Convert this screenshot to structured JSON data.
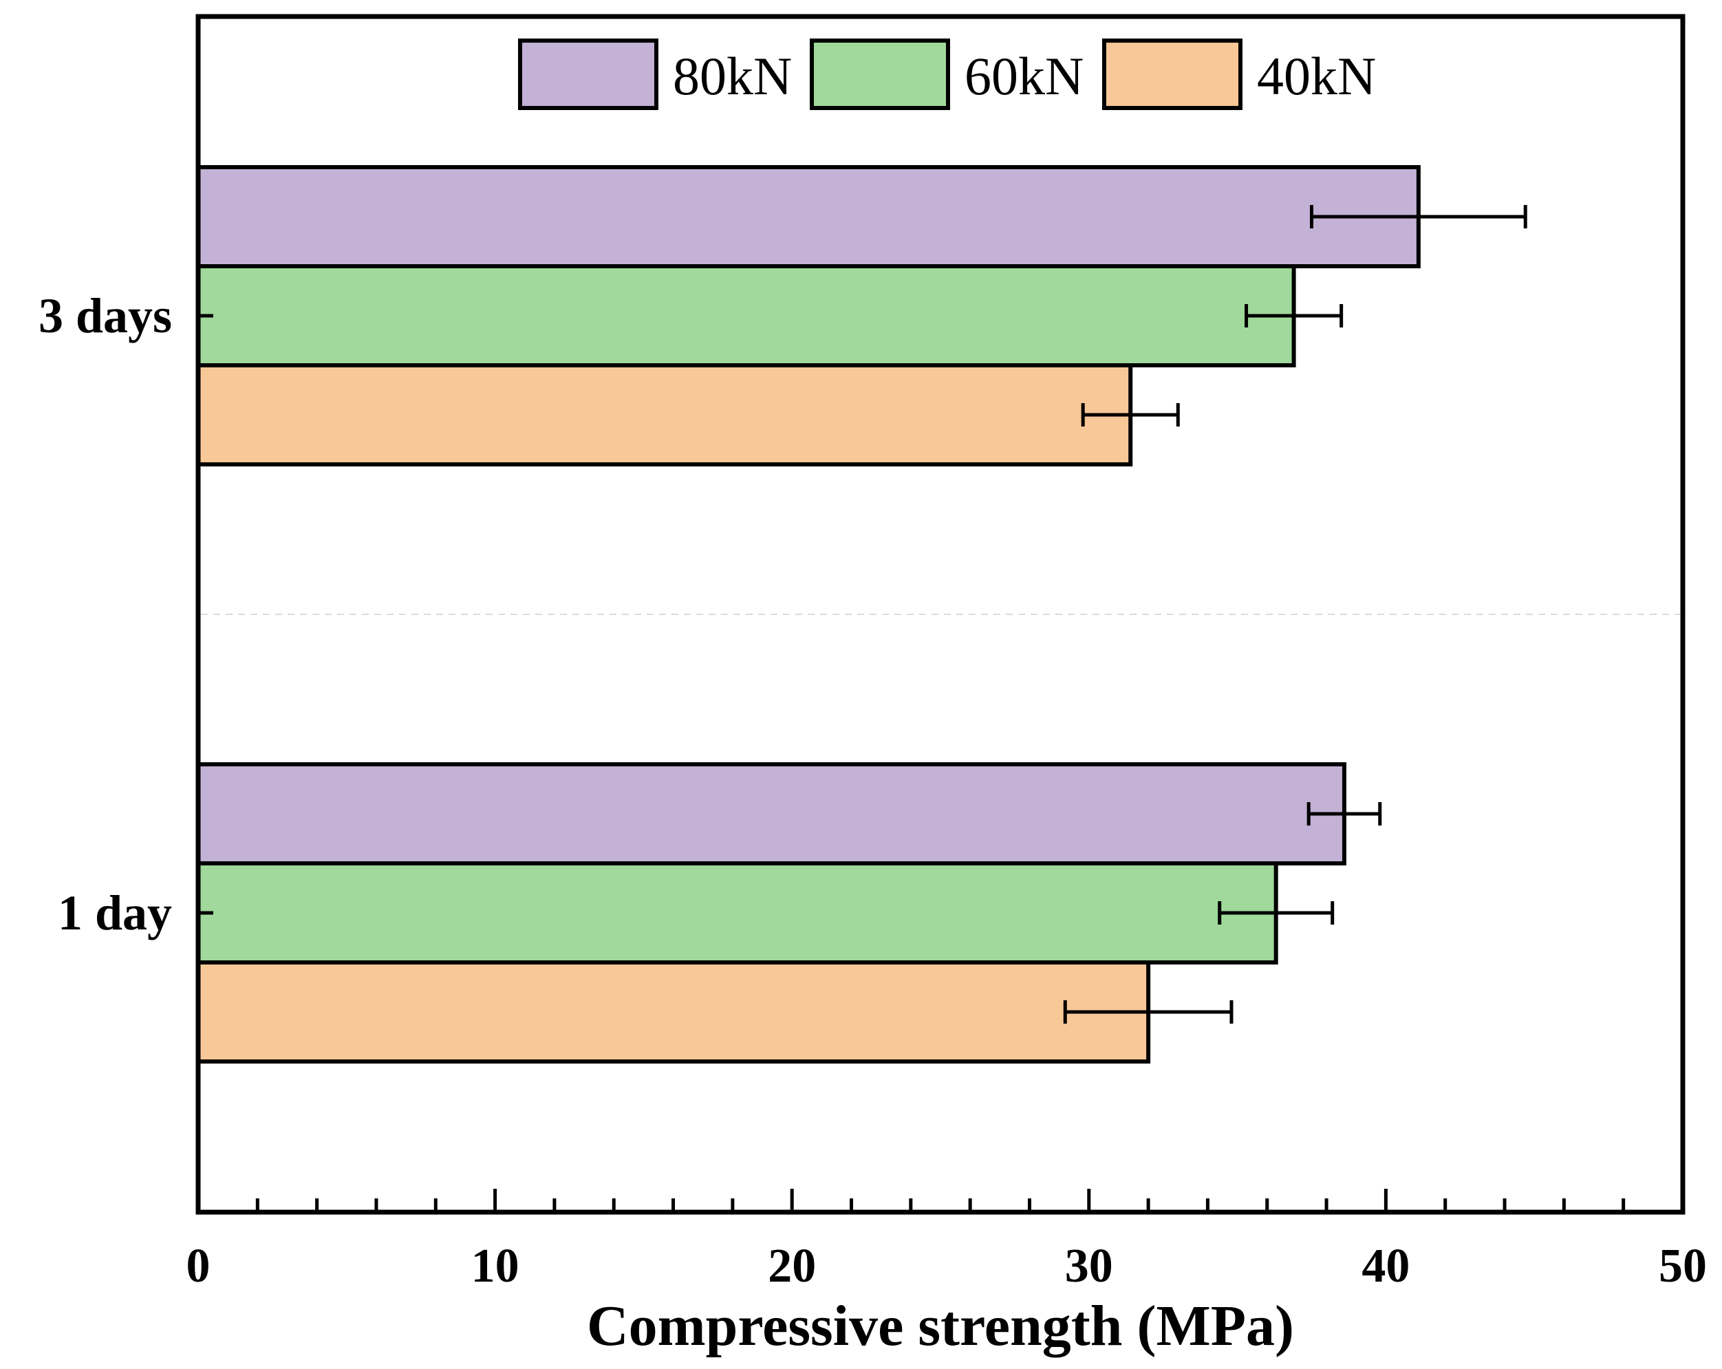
{
  "chart_data": {
    "type": "bar",
    "orientation": "horizontal",
    "title": "",
    "xlabel": "Compressive strength (MPa)",
    "ylabel": "",
    "xlim": [
      0,
      50
    ],
    "xticks": [
      0,
      10,
      20,
      30,
      40,
      50
    ],
    "categories": [
      "3 days",
      "1 day"
    ],
    "series": [
      {
        "name": "80kN",
        "color": "#c3b1d6",
        "values": [
          41.1,
          38.6
        ],
        "errors": [
          3.6,
          1.2
        ]
      },
      {
        "name": "60kN",
        "color": "#a0d99b",
        "values": [
          36.9,
          36.3
        ],
        "errors": [
          1.6,
          1.9
        ]
      },
      {
        "name": "40kN",
        "color": "#f9c898",
        "values": [
          31.4,
          32.0
        ],
        "errors": [
          1.6,
          2.8
        ]
      }
    ],
    "grid": false,
    "legend_position": "top"
  }
}
